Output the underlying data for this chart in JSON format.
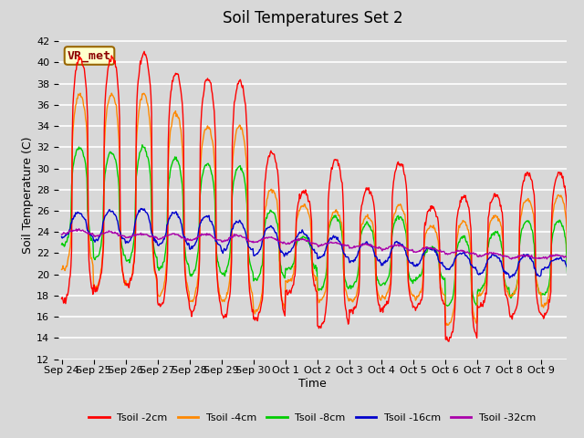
{
  "title": "Soil Temperatures Set 2",
  "xlabel": "Time",
  "ylabel": "Soil Temperature (C)",
  "ylim": [
    12,
    43
  ],
  "yticks": [
    12,
    14,
    16,
    18,
    20,
    22,
    24,
    26,
    28,
    30,
    32,
    34,
    36,
    38,
    40,
    42
  ],
  "bg_color": "#d8d8d8",
  "plot_bg_color": "#d8d8d8",
  "grid_color": "#ffffff",
  "annotation_text": "VR_met",
  "annotation_bg": "#ffffcc",
  "annotation_border": "#996600",
  "legend_labels": [
    "Tsoil -2cm",
    "Tsoil -4cm",
    "Tsoil -8cm",
    "Tsoil -16cm",
    "Tsoil -32cm"
  ],
  "line_colors": [
    "#ff0000",
    "#ff8800",
    "#00cc00",
    "#0000cc",
    "#aa00aa"
  ],
  "title_fontsize": 12,
  "axis_label_fontsize": 9,
  "tick_fontsize": 8,
  "x_tick_labels": [
    "Sep 24",
    "Sep 25",
    "Sep 26",
    "Sep 27",
    "Sep 28",
    "Sep 29",
    "Sep 30",
    "Oct 1",
    "Oct 2",
    "Oct 3",
    "Oct 4",
    "Oct 5",
    "Oct 6",
    "Oct 7",
    "Oct 8",
    "Oct 9"
  ]
}
